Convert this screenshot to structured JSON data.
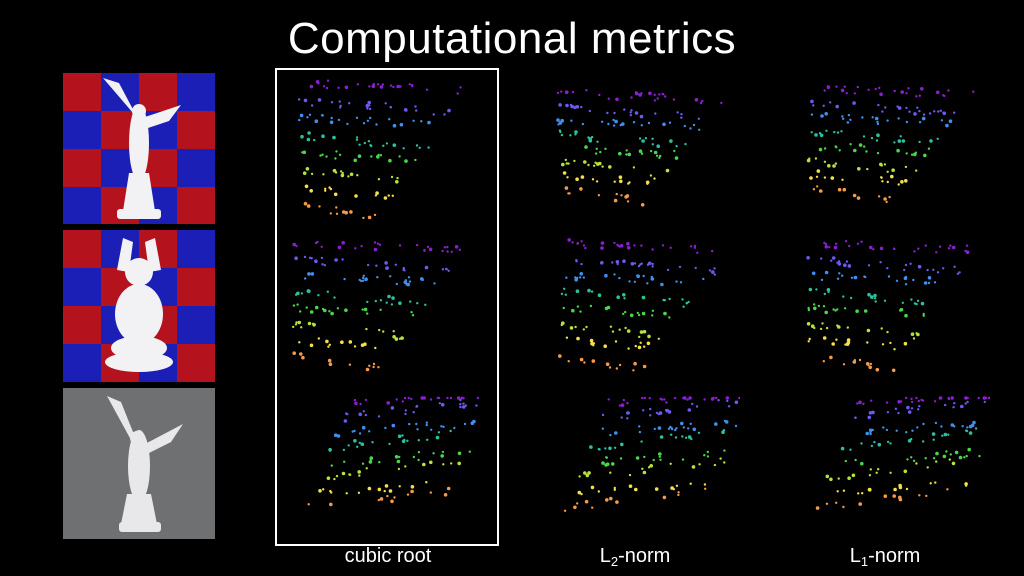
{
  "slide": {
    "title": "Computational metrics",
    "columns": [
      {
        "label": "cubic root"
      },
      {
        "label_main": "L",
        "label_sub": "2",
        "label_rest": "-norm"
      },
      {
        "label_main": "L",
        "label_sub": "1",
        "label_rest": "-norm"
      }
    ],
    "photos": [
      {
        "name": "winged-statue-on-checkerboard",
        "background": "checkerboard",
        "colors": [
          "#b4121c",
          "#1b1fb5"
        ]
      },
      {
        "name": "buddha-statue-on-checkerboard",
        "background": "checkerboard",
        "colors": [
          "#b4121c",
          "#1b1fb5"
        ]
      },
      {
        "name": "winged-statue-on-gray",
        "background": "gray",
        "colors": [
          "#6e7072"
        ]
      }
    ],
    "highlighted_column": "cubic root",
    "point_colors": [
      "#8a1fd1",
      "#6a5af0",
      "#3f8ff0",
      "#2bc0a0",
      "#49d64a",
      "#b7e33a",
      "#f3e04a",
      "#f49a4a"
    ]
  }
}
